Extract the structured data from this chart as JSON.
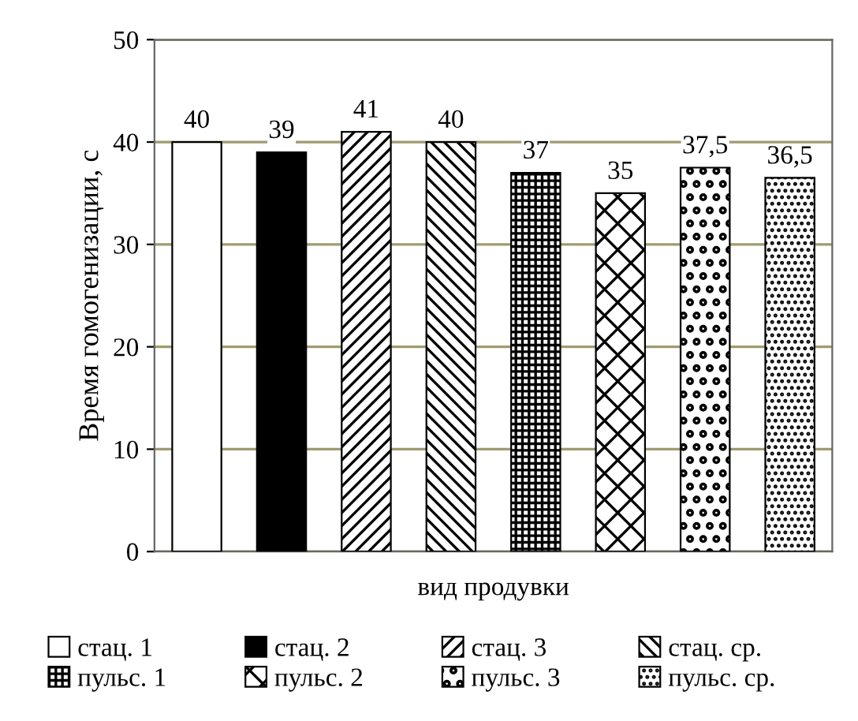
{
  "chart_data": {
    "type": "bar",
    "xlabel": "вид продувки",
    "ylabel": "Время гомогенизации, с",
    "categories": [
      null,
      null,
      null,
      null,
      null,
      null,
      null,
      null
    ],
    "ylim": [
      0,
      50
    ],
    "yticks": [
      0,
      10,
      20,
      30,
      40,
      50
    ],
    "grid": "y",
    "legend": "bottom",
    "series": [
      {
        "name": "стац. 1",
        "color": "#ffffff",
        "values": [
          40,
          null,
          null,
          null,
          null,
          null,
          null,
          null
        ],
        "value_labels": [
          "40",
          null,
          null,
          null,
          null,
          null,
          null,
          null
        ]
      },
      {
        "name": "стац. 2",
        "color": "#000000",
        "values": [
          null,
          39,
          null,
          null,
          null,
          null,
          null,
          null
        ],
        "value_labels": [
          null,
          "39",
          null,
          null,
          null,
          null,
          null,
          null
        ]
      },
      {
        "name": "стац. 3",
        "color": "#000000",
        "values": [
          null,
          null,
          41,
          null,
          null,
          null,
          null,
          null
        ],
        "value_labels": [
          null,
          null,
          "41",
          null,
          null,
          null,
          null,
          null
        ]
      },
      {
        "name": "стац. ср.",
        "color": "#000000",
        "values": [
          null,
          null,
          null,
          40,
          null,
          null,
          null,
          null
        ],
        "value_labels": [
          null,
          null,
          null,
          "40",
          null,
          null,
          null,
          null
        ]
      },
      {
        "name": "пульс. 1",
        "color": "#000000",
        "values": [
          null,
          null,
          null,
          null,
          37,
          null,
          null,
          null
        ],
        "value_labels": [
          null,
          null,
          null,
          null,
          "37",
          null,
          null,
          null
        ]
      },
      {
        "name": "пульс. 2",
        "color": "#000000",
        "values": [
          null,
          null,
          null,
          null,
          null,
          35,
          null,
          null
        ],
        "value_labels": [
          null,
          null,
          null,
          null,
          null,
          "35",
          null,
          null
        ]
      },
      {
        "name": "пульс. 3",
        "color": "#000000",
        "values": [
          null,
          null,
          null,
          null,
          null,
          null,
          37.5,
          null
        ],
        "value_labels": [
          null,
          null,
          null,
          null,
          null,
          null,
          "37,5",
          null
        ]
      },
      {
        "name": "пульс. ср.",
        "color": "#000000",
        "values": [
          null,
          null,
          null,
          null,
          null,
          null,
          null,
          36.5
        ],
        "value_labels": [
          null,
          null,
          null,
          null,
          null,
          null,
          null,
          "36,5"
        ]
      }
    ]
  }
}
